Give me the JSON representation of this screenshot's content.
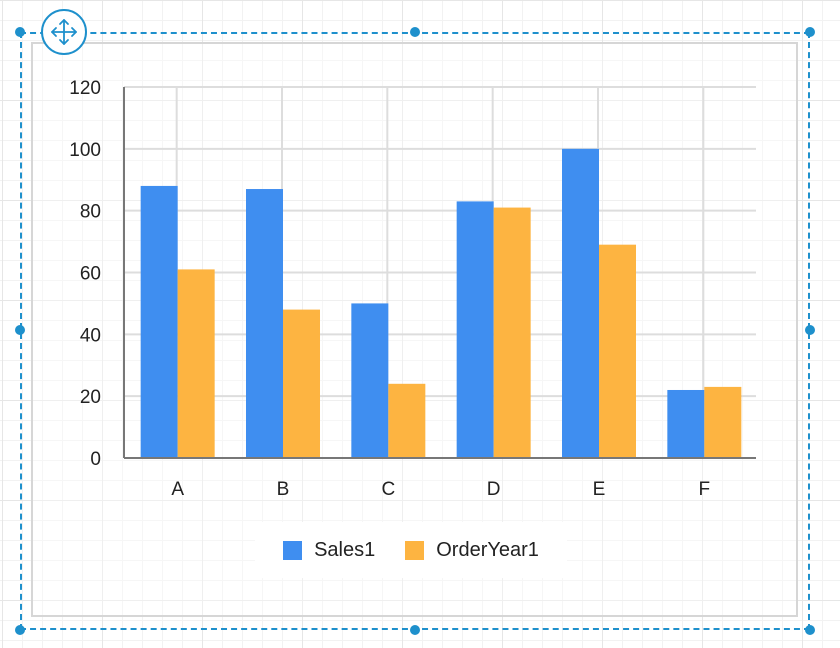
{
  "chart_data": {
    "type": "bar",
    "categories": [
      "A",
      "B",
      "C",
      "D",
      "E",
      "F"
    ],
    "series": [
      {
        "name": "Sales1",
        "values": [
          88,
          87,
          50,
          83,
          100,
          22
        ],
        "color": "#3f8ef0"
      },
      {
        "name": "OrderYear1",
        "values": [
          61,
          48,
          24,
          81,
          69,
          23
        ],
        "color": "#fdb441"
      }
    ],
    "yticks": [
      0,
      20,
      40,
      60,
      80,
      100,
      120
    ],
    "ylim": [
      0,
      120
    ],
    "title": "",
    "xlabel": "",
    "ylabel": "",
    "grid": true,
    "legend": "bottom"
  },
  "icons": {
    "move_handle": "move-arrows-icon"
  },
  "colors": {
    "selection": "#1e90cc",
    "axis": "#777777",
    "grid": "#dddddd"
  }
}
